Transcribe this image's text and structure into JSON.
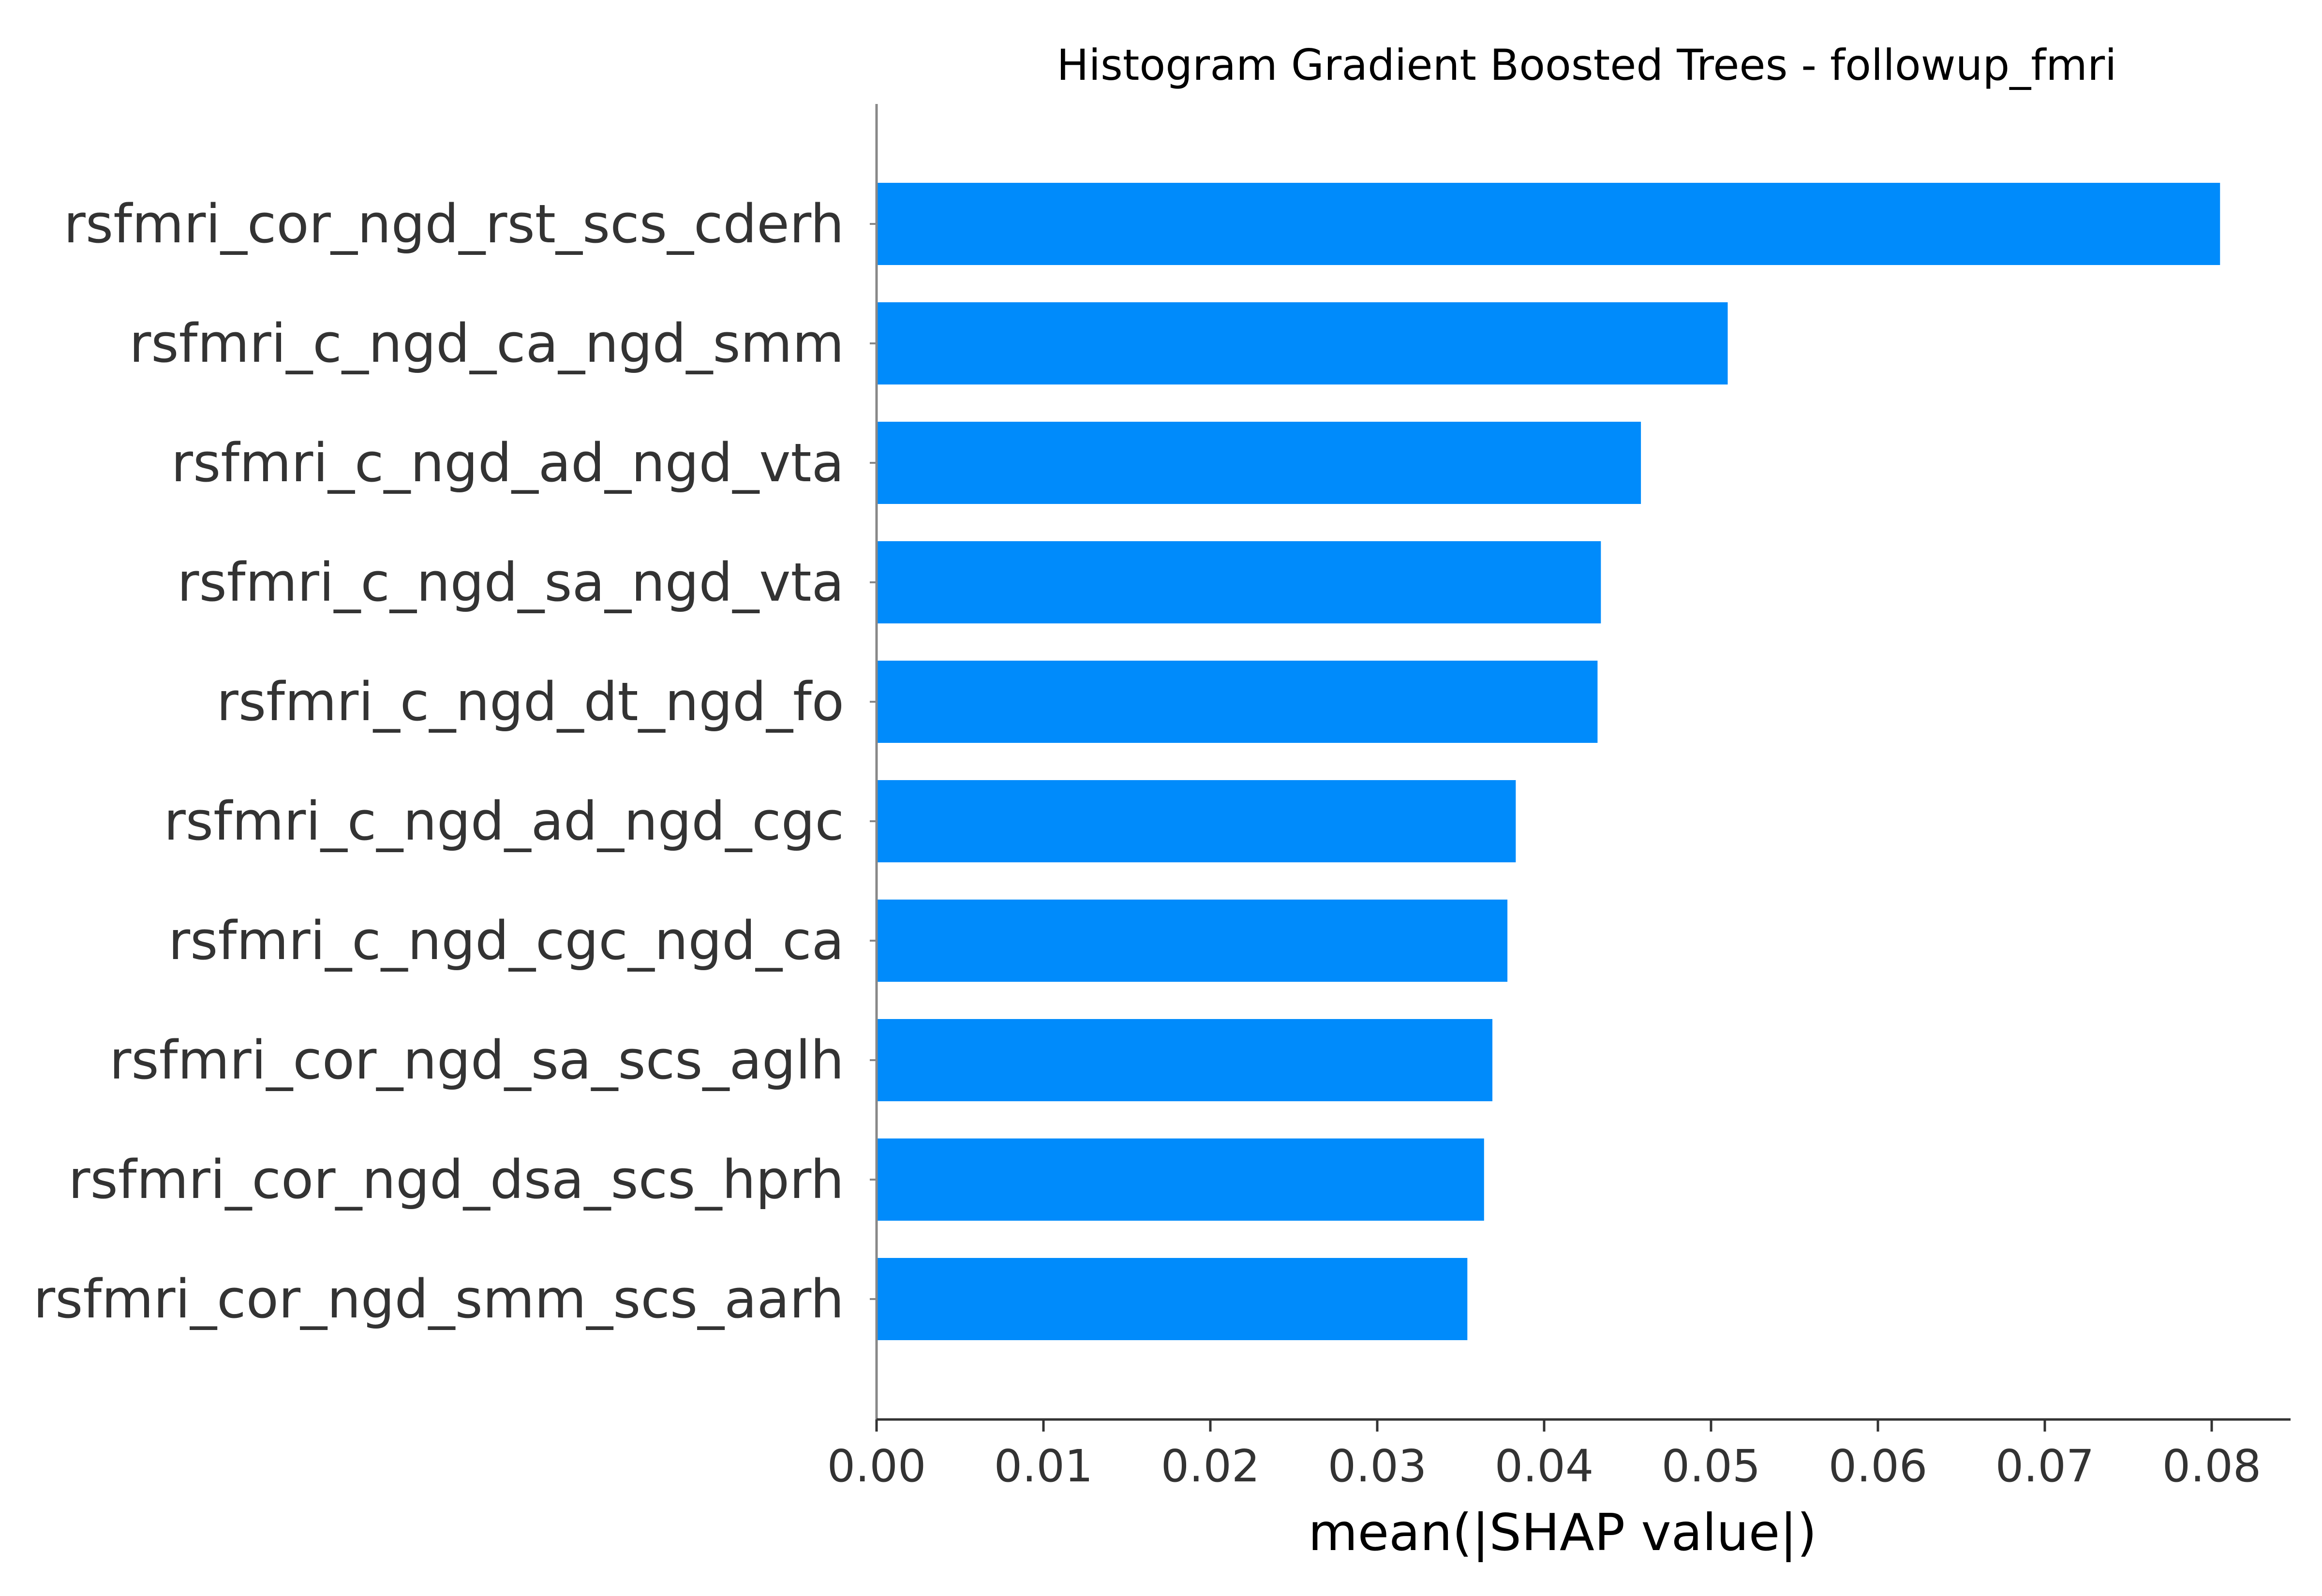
{
  "chart_data": {
    "type": "bar",
    "orientation": "horizontal",
    "title": "Histogram Gradient Boosted Trees - followup_fmri",
    "xlabel": "mean(|SHAP value|)",
    "ylabel": "",
    "xlim": [
      0,
      0.0845
    ],
    "xticks": [
      "0.00",
      "0.01",
      "0.02",
      "0.03",
      "0.04",
      "0.05",
      "0.06",
      "0.07",
      "0.08"
    ],
    "grid": false,
    "legend": "none",
    "bar_color": "#008bfb",
    "categories": [
      "rsfmri_cor_ngd_rst_scs_cderh",
      "rsfmri_c_ngd_ca_ngd_smm",
      "rsfmri_c_ngd_ad_ngd_vta",
      "rsfmri_c_ngd_sa_ngd_vta",
      "rsfmri_c_ngd_dt_ngd_fo",
      "rsfmri_c_ngd_ad_ngd_cgc",
      "rsfmri_c_ngd_cgc_ngd_ca",
      "rsfmri_cor_ngd_sa_scs_aglh",
      "rsfmri_cor_ngd_dsa_scs_hprh",
      "rsfmri_cor_ngd_smm_scs_aarh"
    ],
    "values": [
      0.0805,
      0.051,
      0.0458,
      0.0434,
      0.0432,
      0.0383,
      0.0378,
      0.0369,
      0.0364,
      0.0354
    ]
  }
}
